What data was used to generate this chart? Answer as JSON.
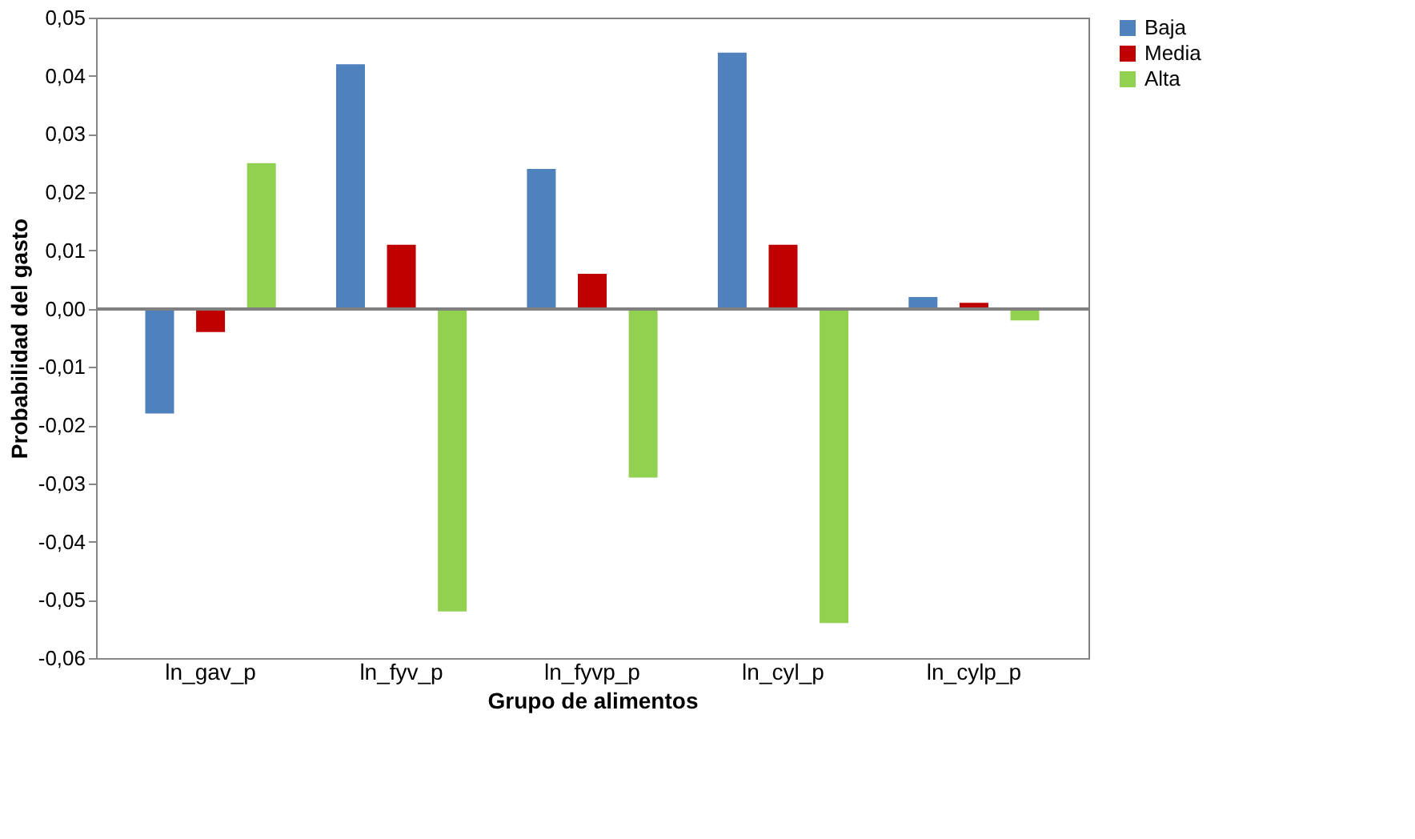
{
  "chart_data": {
    "type": "bar",
    "xlabel": "Grupo de alimentos",
    "ylabel": "Probabilidad del gasto",
    "categories": [
      "ln_gav_p",
      "ln_fyv_p",
      "ln_fyvp_p",
      "ln_cyl_p",
      "ln_cylp_p"
    ],
    "series": [
      {
        "name": "Baja",
        "color": "#4f81bd",
        "values": [
          -0.018,
          0.042,
          0.024,
          0.044,
          0.002
        ]
      },
      {
        "name": "Media",
        "color": "#c00000",
        "values": [
          -0.004,
          0.011,
          0.006,
          0.011,
          0.001
        ]
      },
      {
        "name": "Alta",
        "color": "#92d050",
        "values": [
          0.025,
          -0.052,
          -0.029,
          -0.054,
          -0.002
        ]
      }
    ],
    "ylim": [
      -0.06,
      0.05
    ],
    "yticks": [
      {
        "value": -0.06,
        "label": "-0,06"
      },
      {
        "value": -0.05,
        "label": "-0,05"
      },
      {
        "value": -0.04,
        "label": "-0,04"
      },
      {
        "value": -0.03,
        "label": "-0,03"
      },
      {
        "value": -0.02,
        "label": "-0,02"
      },
      {
        "value": -0.01,
        "label": "-0,01"
      },
      {
        "value": 0,
        "label": "0,00"
      },
      {
        "value": 0.01,
        "label": "0,01"
      },
      {
        "value": 0.02,
        "label": "0,02"
      },
      {
        "value": 0.03,
        "label": "0,03"
      },
      {
        "value": 0.04,
        "label": "0,04"
      },
      {
        "value": 0.05,
        "label": "0,05"
      }
    ],
    "ref_lines": [
      {
        "axis": "y",
        "value": 0,
        "color": "#808080"
      }
    ],
    "grid": false,
    "legend": "right"
  }
}
